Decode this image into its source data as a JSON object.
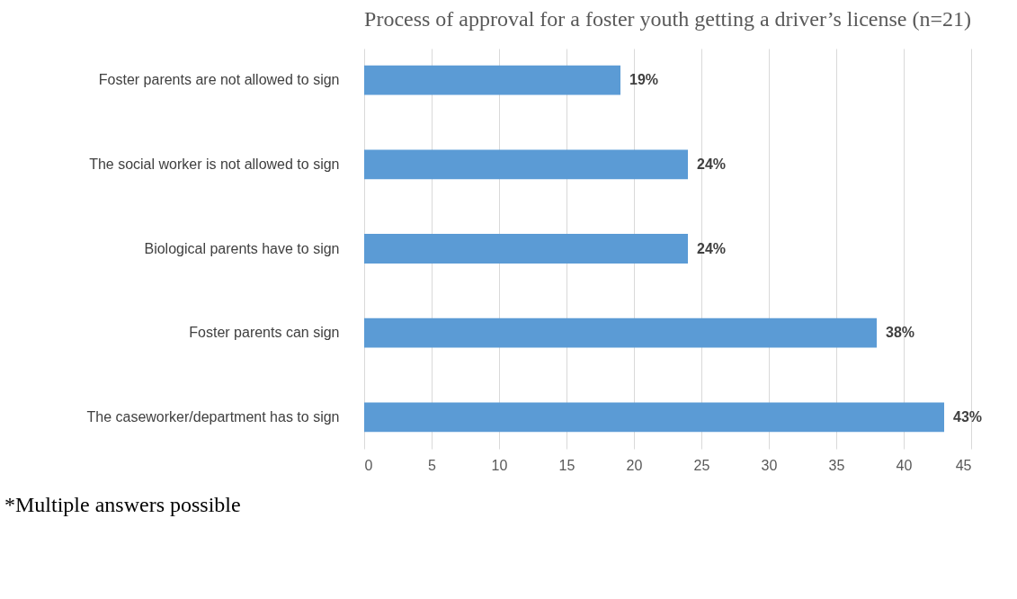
{
  "chart_data": {
    "type": "bar",
    "orientation": "horizontal",
    "title": "Process of approval for a foster youth getting a driver’s license (n=21)",
    "categories": [
      "Foster parents are not allowed to sign",
      "The social worker is not allowed to sign",
      "Biological parents have to sign",
      "Foster parents can sign",
      "The caseworker/department has to sign"
    ],
    "values": [
      19,
      24,
      24,
      38,
      43
    ],
    "value_labels": [
      "19%",
      "24%",
      "24%",
      "38%",
      "43%"
    ],
    "color": "#5b9bd5",
    "xlim": [
      0,
      45
    ],
    "xticks": [
      0,
      5,
      10,
      15,
      20,
      25,
      30,
      35,
      40,
      45
    ],
    "grid": "x",
    "annotations": [
      "*Multiple answers possible"
    ]
  }
}
